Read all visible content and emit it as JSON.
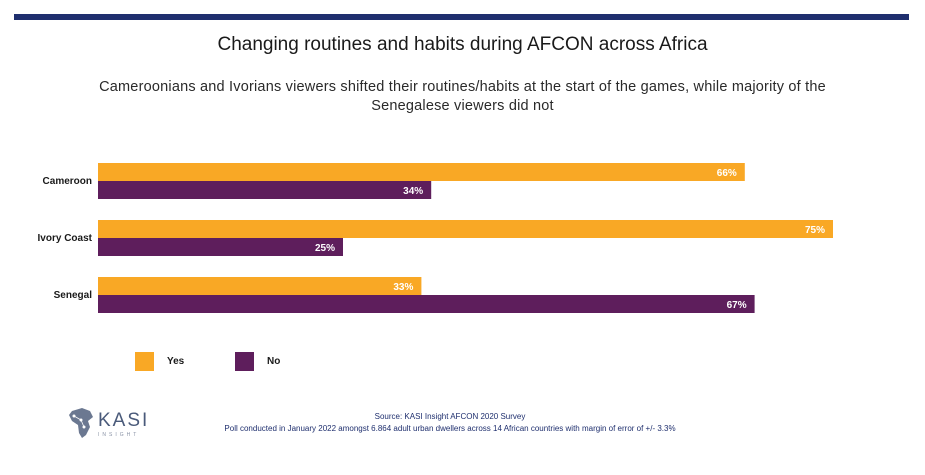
{
  "title": "Changing routines and habits during AFCON across Africa",
  "subtitle": "Cameroonians and Ivorians viewers shifted their routines/habits at the start of the games, while majority of the Senegalese viewers did not",
  "colors": {
    "yes": "#f9a825",
    "no": "#5e1e5c",
    "rule": "#1f2f6e"
  },
  "chart_data": {
    "type": "bar",
    "orientation": "horizontal",
    "categories": [
      "Cameroon",
      "Ivory Coast",
      "Senegal"
    ],
    "series": [
      {
        "name": "Yes",
        "values": [
          66,
          75,
          33
        ],
        "labels": [
          "66%",
          "75%",
          "33%"
        ]
      },
      {
        "name": "No",
        "values": [
          34,
          25,
          67
        ],
        "labels": [
          "34%",
          "25%",
          "67%"
        ]
      }
    ],
    "xlim": [
      0,
      100
    ],
    "legend": "bottom-left"
  },
  "legend": {
    "yes": "Yes",
    "no": "No"
  },
  "logo": {
    "name": "KASI",
    "tagline": "INSIGHT"
  },
  "source": {
    "line1": "Source: KASI Insight AFCON 2020 Survey",
    "line2": "Poll conducted in January 2022 amongst 6.864 adult urban dwellers across 14 African countries with margin of error of +/- 3.3%"
  }
}
